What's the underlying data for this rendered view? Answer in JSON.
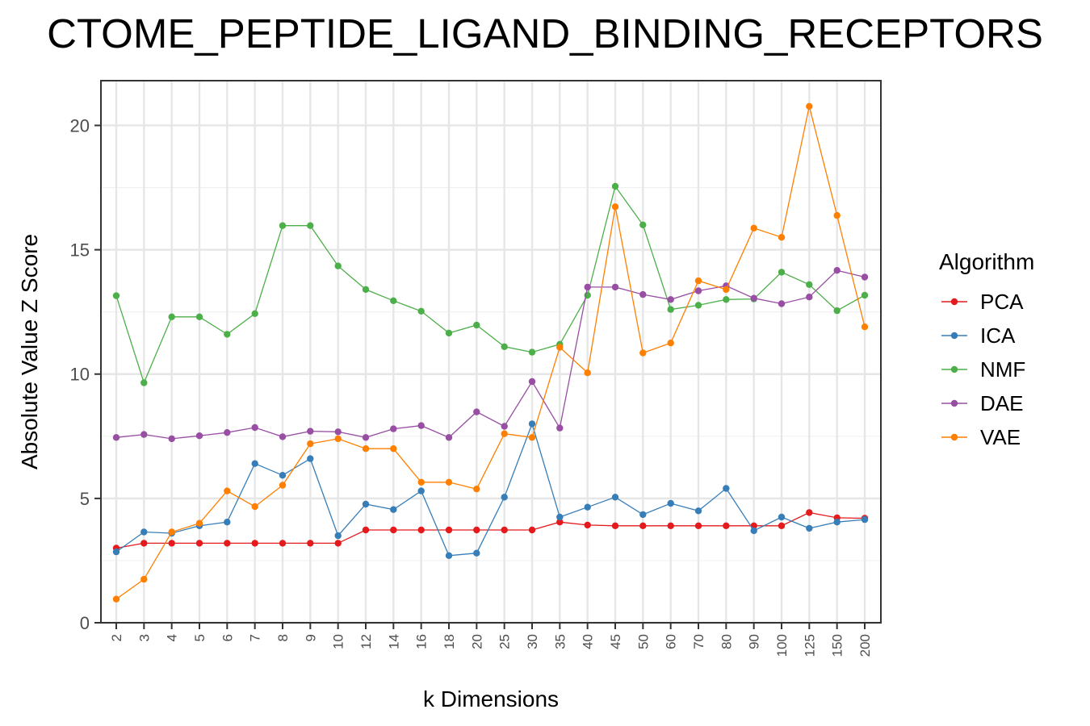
{
  "chart_data": {
    "type": "line",
    "title": "CTOME_PEPTIDE_LIGAND_BINDING_RECEPTORS",
    "xlabel": "k Dimensions",
    "ylabel": "Absolute Value Z Score",
    "categories": [
      "2",
      "3",
      "4",
      "5",
      "6",
      "7",
      "8",
      "9",
      "10",
      "12",
      "14",
      "16",
      "18",
      "20",
      "25",
      "30",
      "35",
      "40",
      "45",
      "50",
      "60",
      "70",
      "80",
      "90",
      "100",
      "125",
      "150",
      "200"
    ],
    "ylim": [
      0,
      21.8
    ],
    "yticks": [
      0,
      5,
      10,
      15,
      20
    ],
    "grid": true,
    "legend": {
      "title": "Algorithm",
      "position": "right"
    },
    "series": [
      {
        "name": "PCA",
        "color": "#e41a1c",
        "values": [
          3.0,
          3.2,
          3.2,
          3.2,
          3.2,
          3.2,
          3.2,
          3.2,
          3.2,
          3.73,
          3.73,
          3.73,
          3.73,
          3.73,
          3.73,
          3.73,
          4.05,
          3.93,
          3.9,
          3.9,
          3.9,
          3.9,
          3.9,
          3.9,
          3.9,
          4.43,
          4.22,
          4.2
        ]
      },
      {
        "name": "ICA",
        "color": "#377eb8",
        "values": [
          2.85,
          3.65,
          3.6,
          3.9,
          4.05,
          6.4,
          5.93,
          6.6,
          3.5,
          4.77,
          4.55,
          5.3,
          2.7,
          2.8,
          5.05,
          8.0,
          4.25,
          4.65,
          5.05,
          4.35,
          4.8,
          4.5,
          5.4,
          3.7,
          4.25,
          3.8,
          4.05,
          4.15
        ]
      },
      {
        "name": "NMF",
        "color": "#4daf4a",
        "values": [
          13.15,
          9.65,
          12.3,
          12.3,
          11.6,
          12.43,
          15.97,
          15.97,
          14.35,
          13.4,
          12.95,
          12.53,
          11.65,
          11.97,
          11.1,
          10.88,
          11.2,
          13.17,
          17.55,
          16.0,
          12.6,
          12.77,
          13.0,
          13.02,
          14.1,
          13.6,
          12.55,
          13.17
        ]
      },
      {
        "name": "DAE",
        "color": "#984ea3",
        "values": [
          7.45,
          7.57,
          7.4,
          7.52,
          7.65,
          7.85,
          7.48,
          7.7,
          7.68,
          7.45,
          7.8,
          7.93,
          7.45,
          8.48,
          7.9,
          9.7,
          7.83,
          13.5,
          13.5,
          13.2,
          13.0,
          13.35,
          13.55,
          13.05,
          12.83,
          13.1,
          14.17,
          13.9
        ]
      },
      {
        "name": "VAE",
        "color": "#ff7f00",
        "values": [
          0.95,
          1.75,
          3.65,
          4.0,
          5.3,
          4.67,
          5.53,
          7.2,
          7.4,
          7.0,
          7.0,
          5.65,
          5.65,
          5.38,
          7.6,
          7.45,
          11.08,
          10.05,
          16.73,
          10.85,
          11.25,
          13.75,
          13.4,
          15.87,
          15.5,
          20.77,
          16.38,
          11.9
        ]
      }
    ]
  }
}
